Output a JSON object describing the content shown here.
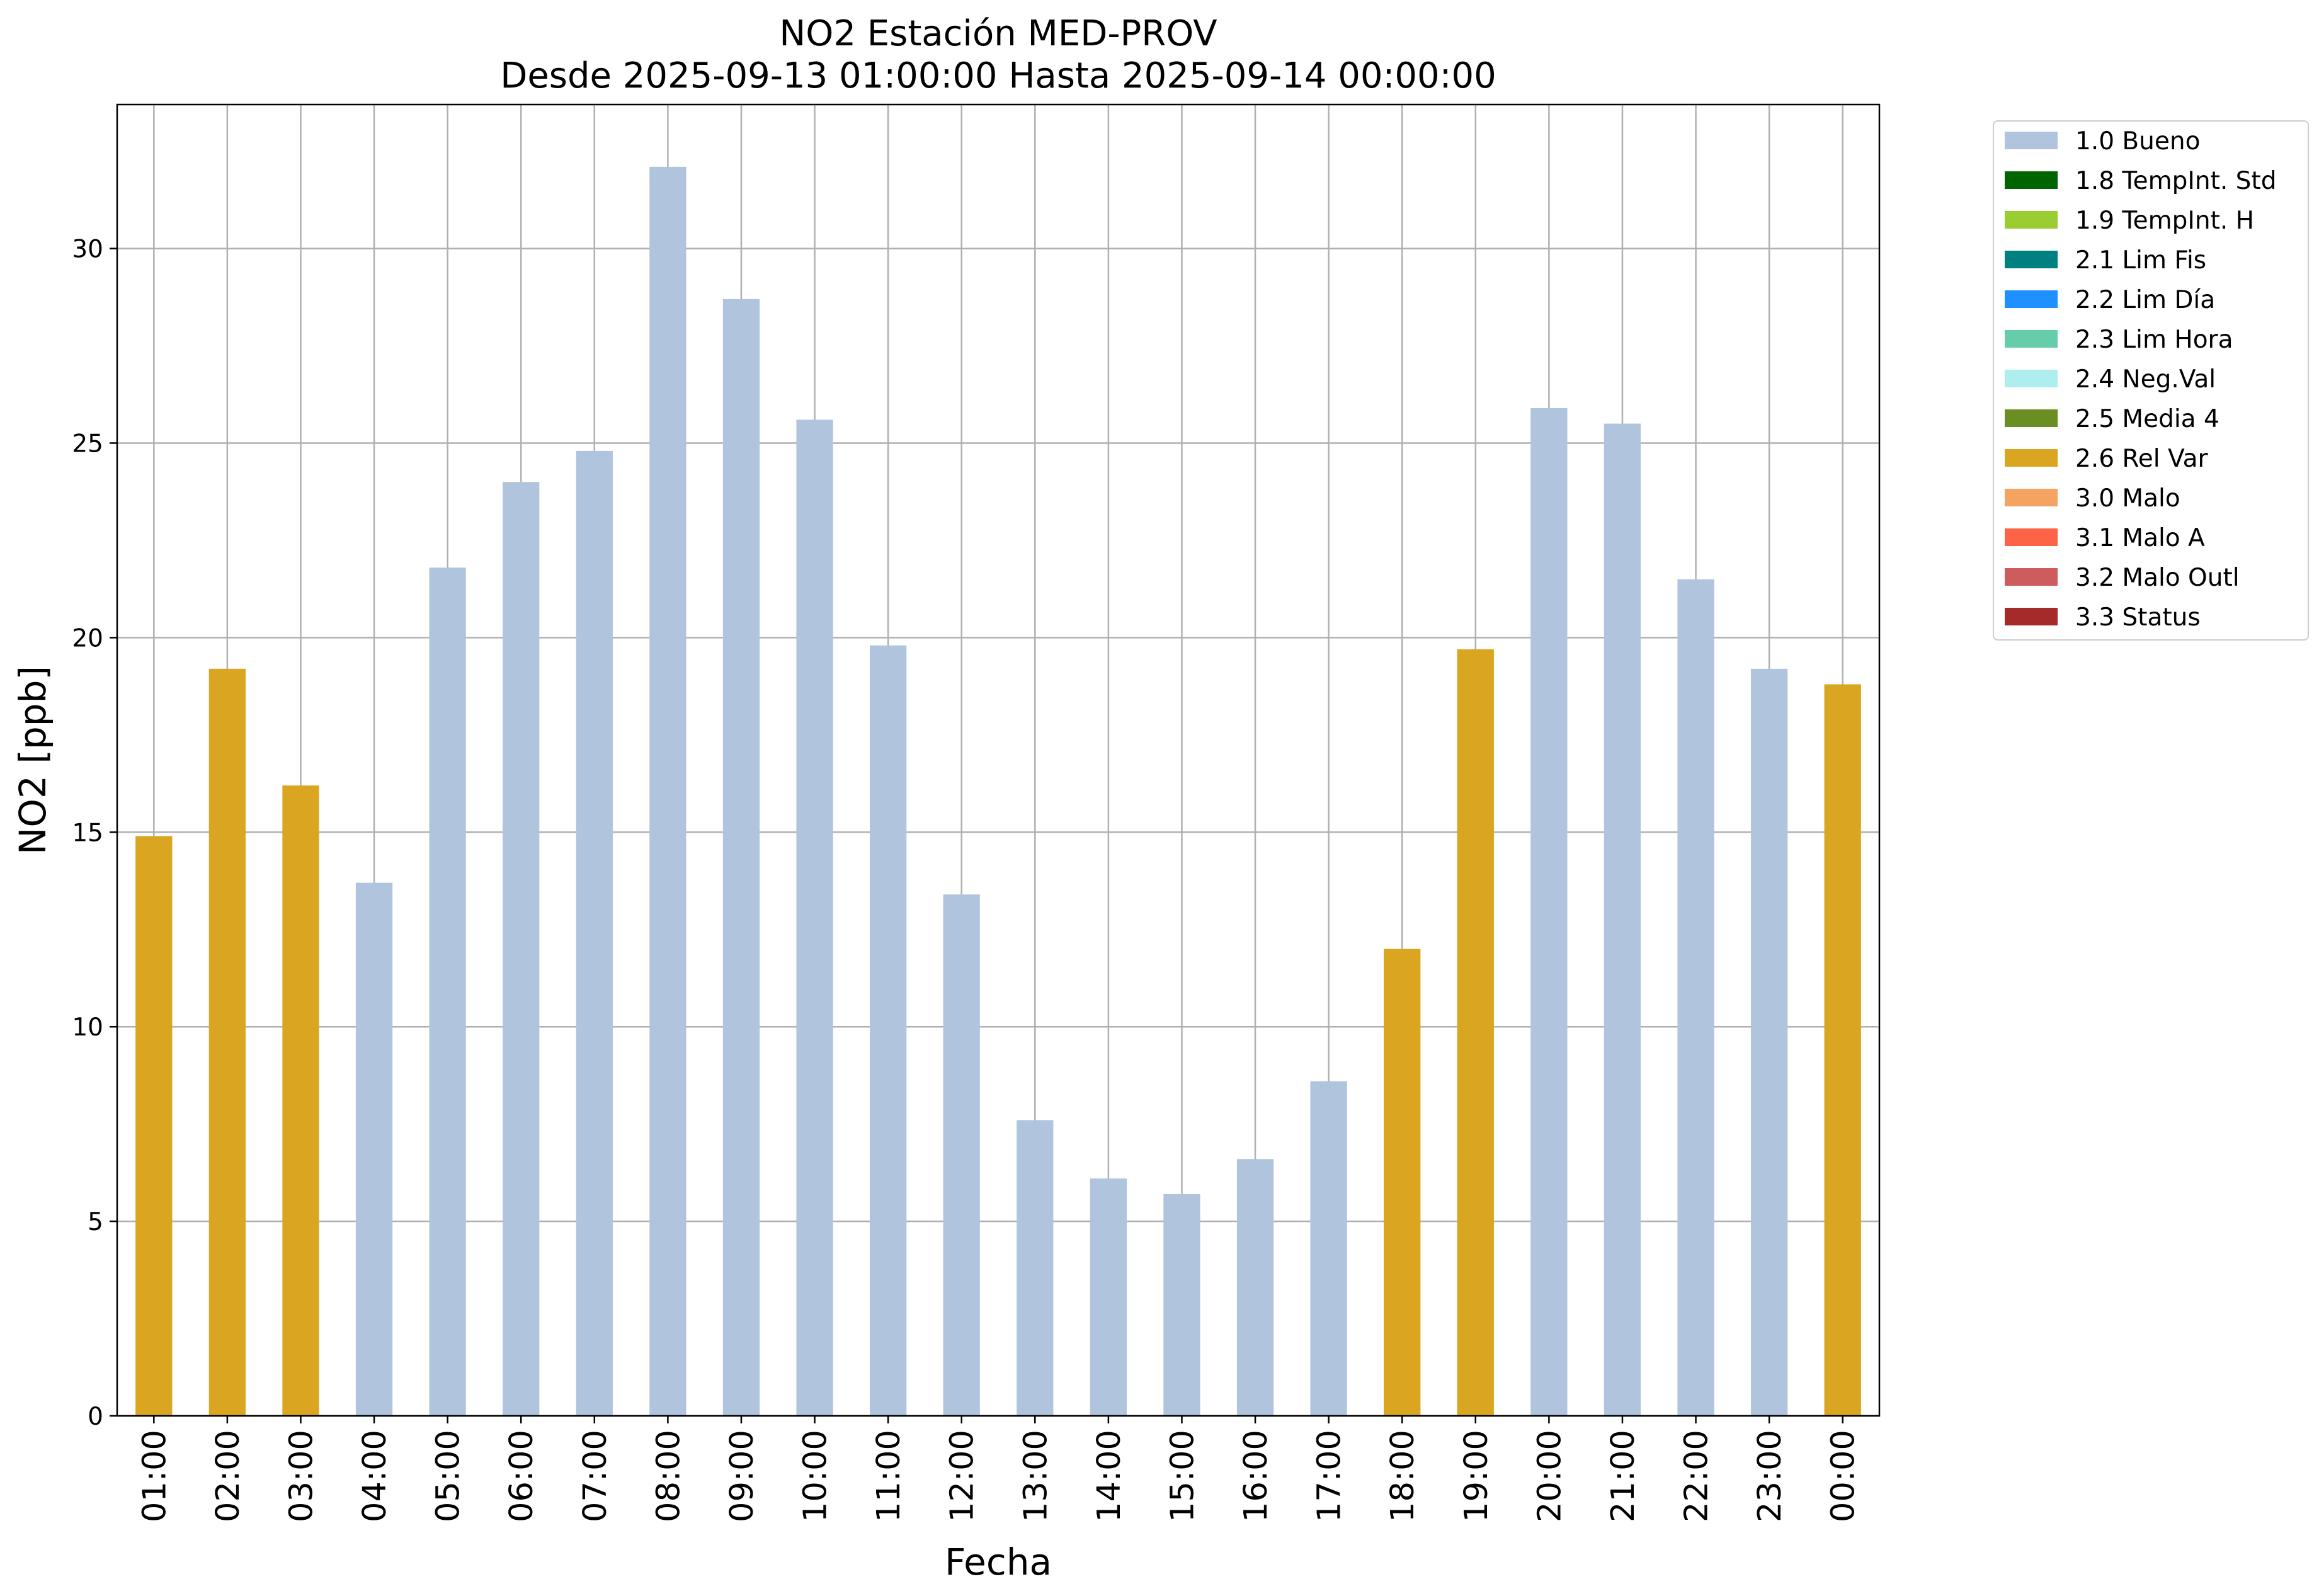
{
  "chart_data": {
    "type": "bar",
    "title": "NO2 Estación MED-PROV",
    "subtitle": "Desde 2025-09-13 01:00:00 Hasta 2025-09-14 00:00:00",
    "xlabel": "Fecha",
    "ylabel": "NO2 [ppb]",
    "ylim": [
      0,
      33.7
    ],
    "yticks": [
      0,
      5,
      10,
      15,
      20,
      25,
      30
    ],
    "grid": true,
    "legend_position": "outside-top-right",
    "categories": [
      "01:00",
      "02:00",
      "03:00",
      "04:00",
      "05:00",
      "06:00",
      "07:00",
      "08:00",
      "09:00",
      "10:00",
      "11:00",
      "12:00",
      "13:00",
      "14:00",
      "15:00",
      "16:00",
      "17:00",
      "18:00",
      "19:00",
      "20:00",
      "21:00",
      "22:00",
      "23:00",
      "00:00"
    ],
    "values": [
      14.9,
      19.2,
      16.2,
      13.7,
      21.8,
      24.0,
      24.8,
      32.1,
      28.7,
      25.6,
      19.8,
      13.4,
      7.6,
      6.1,
      5.7,
      6.6,
      8.6,
      12.0,
      19.7,
      25.9,
      25.5,
      21.5,
      19.2,
      18.8
    ],
    "flags": [
      "2.6 Rel Var",
      "2.6 Rel Var",
      "2.6 Rel Var",
      "1.0 Bueno",
      "1.0 Bueno",
      "1.0 Bueno",
      "1.0 Bueno",
      "1.0 Bueno",
      "1.0 Bueno",
      "1.0 Bueno",
      "1.0 Bueno",
      "1.0 Bueno",
      "1.0 Bueno",
      "1.0 Bueno",
      "1.0 Bueno",
      "1.0 Bueno",
      "1.0 Bueno",
      "2.6 Rel Var",
      "2.6 Rel Var",
      "1.0 Bueno",
      "1.0 Bueno",
      "1.0 Bueno",
      "1.0 Bueno",
      "2.6 Rel Var"
    ],
    "legend": [
      {
        "label": "1.0 Bueno",
        "color": "#b0c4de"
      },
      {
        "label": "1.8 TempInt. Std",
        "color": "#006400"
      },
      {
        "label": "1.9 TempInt. H",
        "color": "#9acd32"
      },
      {
        "label": "2.1 Lim Fis",
        "color": "#008080"
      },
      {
        "label": "2.2 Lim Día",
        "color": "#1e90ff"
      },
      {
        "label": "2.3 Lim Hora",
        "color": "#66cdaa"
      },
      {
        "label": "2.4 Neg.Val",
        "color": "#afeeee"
      },
      {
        "label": "2.5 Media 4",
        "color": "#6b8e23"
      },
      {
        "label": "2.6 Rel Var",
        "color": "#daa520"
      },
      {
        "label": "3.0 Malo",
        "color": "#f4a460"
      },
      {
        "label": "3.1 Malo A",
        "color": "#ff6347"
      },
      {
        "label": "3.2 Malo Outl",
        "color": "#cd5c5c"
      },
      {
        "label": "3.3 Status",
        "color": "#a52a2a"
      }
    ]
  }
}
